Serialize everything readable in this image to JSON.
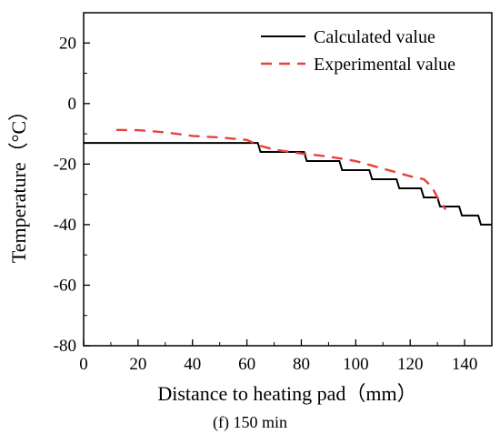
{
  "chart_data": {
    "type": "line",
    "xlabel": "Distance to heating pad（mm）",
    "ylabel": "Temperature（°C）",
    "caption": "(f) 150 min",
    "xlim": [
      0,
      150
    ],
    "ylim": [
      -80,
      30
    ],
    "x_ticks": [
      0,
      20,
      40,
      60,
      80,
      100,
      120,
      140
    ],
    "y_ticks": [
      20,
      0,
      -20,
      -40,
      -60,
      -80
    ],
    "grid": false,
    "legend_position": "top-right",
    "series": [
      {
        "name": "Calculated value",
        "color": "#000000",
        "style": "solid",
        "x": [
          0,
          64,
          65,
          81,
          82,
          94,
          95,
          105,
          106,
          115,
          116,
          124,
          125,
          130,
          131,
          134,
          135,
          138,
          139,
          145,
          146,
          150
        ],
        "y": [
          -13,
          -13,
          -16,
          -16,
          -19,
          -19,
          -22,
          -22,
          -25,
          -25,
          -28,
          -28,
          -31,
          -31,
          -34,
          -34,
          -34,
          -34,
          -37,
          -37,
          -40,
          -40
        ]
      },
      {
        "name": "Experimental value",
        "color": "#e8413a",
        "style": "dashed",
        "x": [
          12,
          20,
          30,
          40,
          50,
          60,
          65,
          70,
          80,
          90,
          100,
          110,
          120,
          125,
          128,
          130,
          133
        ],
        "y": [
          -8.7,
          -8.8,
          -9.5,
          -10.7,
          -11.2,
          -12,
          -14,
          -15.2,
          -16.5,
          -17.5,
          -19,
          -21.5,
          -24,
          -25,
          -27.5,
          -31,
          -35
        ]
      }
    ]
  }
}
